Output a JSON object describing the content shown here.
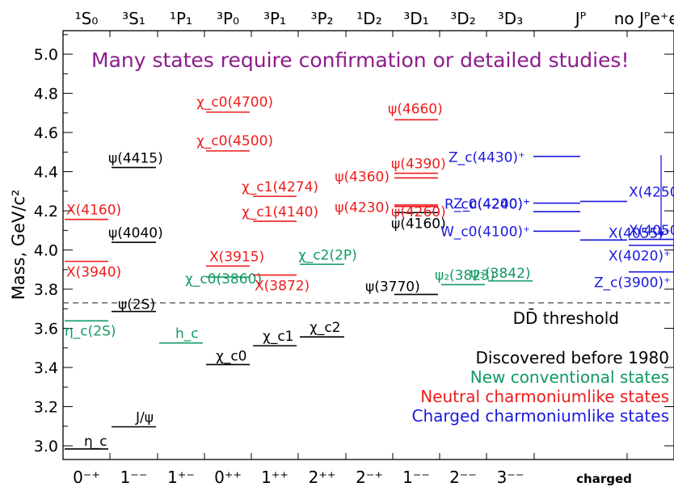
{
  "chart_data": {
    "type": "scatter",
    "title": "",
    "annotation": "Many states require confirmation or detailed studies!",
    "ylabel": "Mass, GeV/c²",
    "ylim": [
      2.93,
      5.12
    ],
    "yticks": [
      "3.0",
      "3.2",
      "3.4",
      "3.6",
      "3.8",
      "4.0",
      "4.2",
      "4.4",
      "4.6",
      "4.8",
      "5.0"
    ],
    "top_columns": [
      "¹S₀",
      "³S₁",
      "¹P₁",
      "³P₀",
      "³P₁",
      "³P₂",
      "¹D₂",
      "³D₁",
      "³D₂",
      "³D₃",
      "Jᴾ",
      "no Jᴾe⁺e⁻"
    ],
    "bottom_columns": [
      "0⁻⁺",
      "1⁻⁻",
      "1⁺⁻",
      "0⁺⁺",
      "1⁺⁺",
      "2⁺⁺",
      "2⁻⁺",
      "1⁻⁻",
      "2⁻⁻",
      "3⁻⁻",
      "charged"
    ],
    "threshold": {
      "mass": 3.73,
      "label": "DD̄ threshold"
    },
    "colors": {
      "discovered": "#000000",
      "conventional": "#109a62",
      "neutral": "#ee1c1c",
      "charged": "#1a1adc",
      "annotation": "#8c1c8c"
    },
    "legend": {
      "position": "bottom-right",
      "entries": [
        {
          "label": "Discovered before 1980",
          "category": "discovered"
        },
        {
          "label": "New conventional states",
          "category": "conventional"
        },
        {
          "label": "Neutral charmoniumlike states",
          "category": "neutral"
        },
        {
          "label": "Charged charmoniumlike states",
          "category": "charged"
        }
      ]
    },
    "states": [
      {
        "name": "η_c",
        "mass": 2.984,
        "column": 0,
        "category": "discovered"
      },
      {
        "name": "η_c(2S)",
        "mass": 3.638,
        "column": 0,
        "category": "conventional"
      },
      {
        "name": "X(3940)",
        "mass": 3.942,
        "column": 0,
        "category": "neutral"
      },
      {
        "name": "X(4160)",
        "mass": 4.156,
        "column": 0,
        "category": "neutral"
      },
      {
        "name": "J/ψ",
        "mass": 3.097,
        "column": 1,
        "category": "discovered"
      },
      {
        "name": "ψ(2S)",
        "mass": 3.686,
        "column": 1,
        "category": "discovered"
      },
      {
        "name": "ψ(4040)",
        "mass": 4.039,
        "column": 1,
        "category": "discovered"
      },
      {
        "name": "ψ(4415)",
        "mass": 4.421,
        "column": 1,
        "category": "discovered"
      },
      {
        "name": "h_c",
        "mass": 3.525,
        "column": 2,
        "category": "conventional"
      },
      {
        "name": "χ_c0",
        "mass": 3.415,
        "column": 3,
        "category": "discovered"
      },
      {
        "name": "χ_c0(3860)",
        "mass": 3.862,
        "column": 3,
        "category": "conventional"
      },
      {
        "name": "X(3915)",
        "mass": 3.918,
        "column": 3,
        "category": "neutral"
      },
      {
        "name": "χ_c0(4500)",
        "mass": 4.506,
        "column": 3,
        "category": "neutral"
      },
      {
        "name": "χ_c0(4700)",
        "mass": 4.704,
        "column": 3,
        "category": "neutral"
      },
      {
        "name": "χ_c1",
        "mass": 3.511,
        "column": 4,
        "category": "discovered"
      },
      {
        "name": "X(3872)",
        "mass": 3.872,
        "column": 4,
        "category": "neutral"
      },
      {
        "name": "χ_c1(4140)",
        "mass": 4.147,
        "column": 4,
        "category": "neutral"
      },
      {
        "name": "χ_c1(4274)",
        "mass": 4.274,
        "column": 4,
        "category": "neutral"
      },
      {
        "name": "χ_c2",
        "mass": 3.556,
        "column": 5,
        "category": "discovered"
      },
      {
        "name": "χ_c2(2P)",
        "mass": 3.927,
        "column": 5,
        "category": "conventional"
      },
      {
        "name": "ψ(3770)",
        "mass": 3.773,
        "column": 7,
        "category": "discovered"
      },
      {
        "name": "ψ(4160)",
        "mass": 4.191,
        "column": 7,
        "category": "discovered"
      },
      {
        "name": "ψ(4230)",
        "mass": 4.222,
        "column": 7,
        "category": "neutral"
      },
      {
        "name": "ψ(4260)",
        "mass": 4.23,
        "column": 7,
        "category": "neutral"
      },
      {
        "name": "ψ(4360)",
        "mass": 4.368,
        "column": 7,
        "category": "neutral"
      },
      {
        "name": "ψ(4390)",
        "mass": 4.392,
        "column": 7,
        "category": "neutral"
      },
      {
        "name": "ψ(4660)",
        "mass": 4.665,
        "column": 7,
        "category": "neutral"
      },
      {
        "name": "ψ₂(3823)",
        "mass": 3.823,
        "column": 8,
        "category": "conventional"
      },
      {
        "name": "ψ₃(3842)",
        "mass": 3.842,
        "column": 9,
        "category": "conventional"
      },
      {
        "name": "Z_c(3900)⁺",
        "mass": 3.888,
        "column": 11,
        "category": "charged"
      },
      {
        "name": "X(4020)⁺",
        "mass": 4.024,
        "column": 11,
        "category": "charged"
      },
      {
        "name": "X(4055)⁺",
        "mass": 4.054,
        "column": 11,
        "category": "charged"
      },
      {
        "name": "X(4050)⁺",
        "mass": 4.051,
        "column": 10,
        "category": "charged"
      },
      {
        "name": "W_c0(4100)⁺",
        "mass": 4.096,
        "column": 10,
        "category": "charged"
      },
      {
        "name": "Z_c(4200)⁺",
        "mass": 4.196,
        "column": 10,
        "category": "charged"
      },
      {
        "name": "R_c0(4240)⁺",
        "mass": 4.239,
        "column": 10,
        "category": "charged"
      },
      {
        "name": "X(4250)⁺",
        "mass": 4.248,
        "column": 10,
        "category": "charged"
      },
      {
        "name": "Z_c(4430)⁺",
        "mass": 4.478,
        "column": 10,
        "category": "charged"
      }
    ]
  }
}
